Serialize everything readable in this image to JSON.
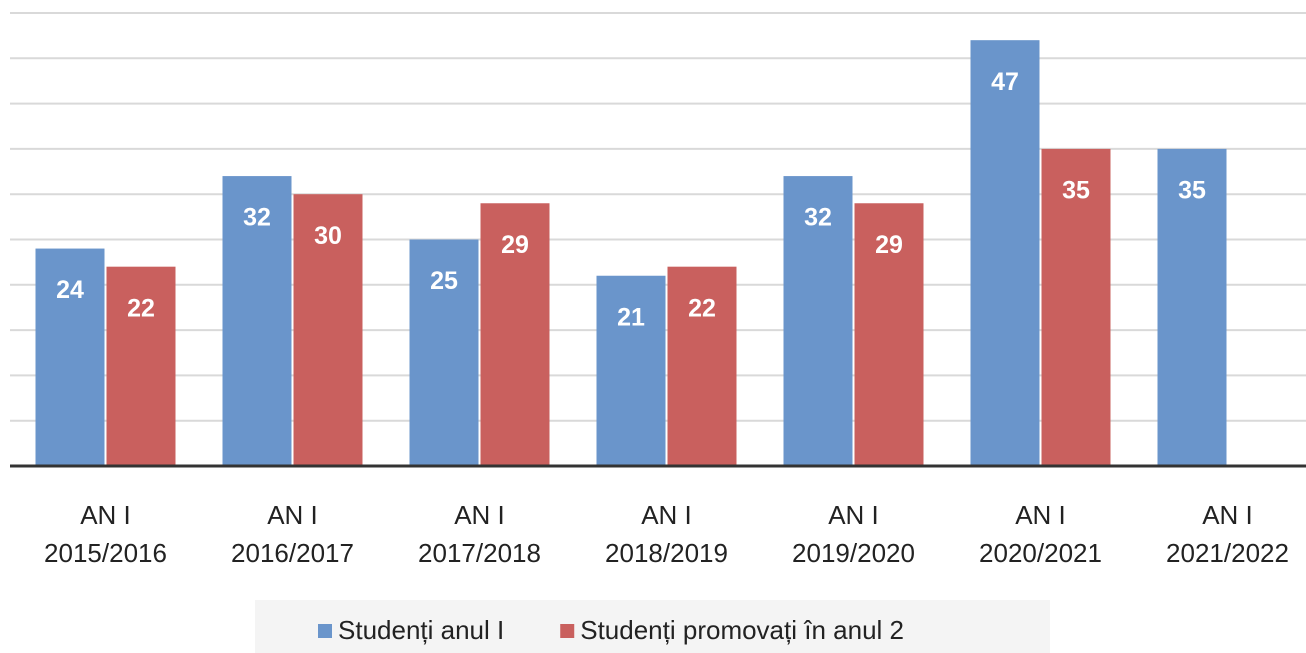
{
  "chart_data": {
    "type": "bar",
    "categories": [
      "AN I\n2015/2016",
      "AN I\n2016/2017",
      "AN I\n2017/2018",
      "AN I\n2018/2019",
      "AN I\n2019/2020",
      "AN I\n2020/2021",
      "AN I\n2021/2022"
    ],
    "series": [
      {
        "name": "Studenți anul I",
        "color": "#6a95cb",
        "values": [
          24,
          32,
          25,
          21,
          32,
          47,
          35
        ]
      },
      {
        "name": "Studenți promovați în anul 2",
        "color": "#c9605e",
        "values": [
          22,
          30,
          29,
          22,
          29,
          35,
          null
        ]
      }
    ],
    "ylim": [
      0,
      50
    ],
    "yticks": [
      0,
      5,
      10,
      15,
      20,
      25,
      30,
      35,
      40,
      45,
      50
    ],
    "grid": true,
    "legend": "bottom"
  }
}
